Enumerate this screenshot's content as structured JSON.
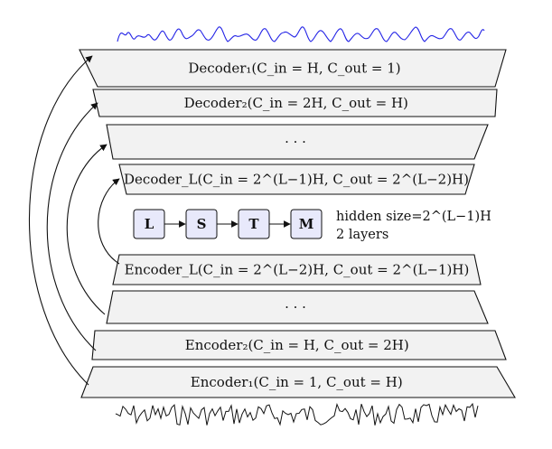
{
  "layers": [
    {
      "id": "decoder-1",
      "label": "Decoder₁(C_in = H, C_out = 1)"
    },
    {
      "id": "decoder-2",
      "label": "Decoder₂(C_in = 2H, C_out = H)"
    },
    {
      "id": "decoder-dots",
      "label": "· · ·"
    },
    {
      "id": "decoder-L",
      "label": "Decoder_L(C_in = 2^(L−1)H, C_out = 2^(L−2)H)"
    },
    {
      "id": "encoder-L",
      "label": "Encoder_L(C_in = 2^(L−2)H, C_out = 2^(L−1)H)"
    },
    {
      "id": "encoder-dots",
      "label": "· · ·"
    },
    {
      "id": "encoder-2",
      "label": "Encoder₂(C_in = H, C_out = 2H)"
    },
    {
      "id": "encoder-1",
      "label": "Encoder₁(C_in = 1, C_out = H)"
    }
  ],
  "lstm_blocks": [
    "L",
    "S",
    "T",
    "M"
  ],
  "lstm_note": {
    "hidden_size": "hidden size=2^(L−1)H",
    "layers": "2 layers"
  },
  "colors": {
    "output_signal": "#2323e6",
    "input_signal": "#111111",
    "block_fill": "#e8e9fb",
    "band_fill": "#f2f2f2"
  }
}
